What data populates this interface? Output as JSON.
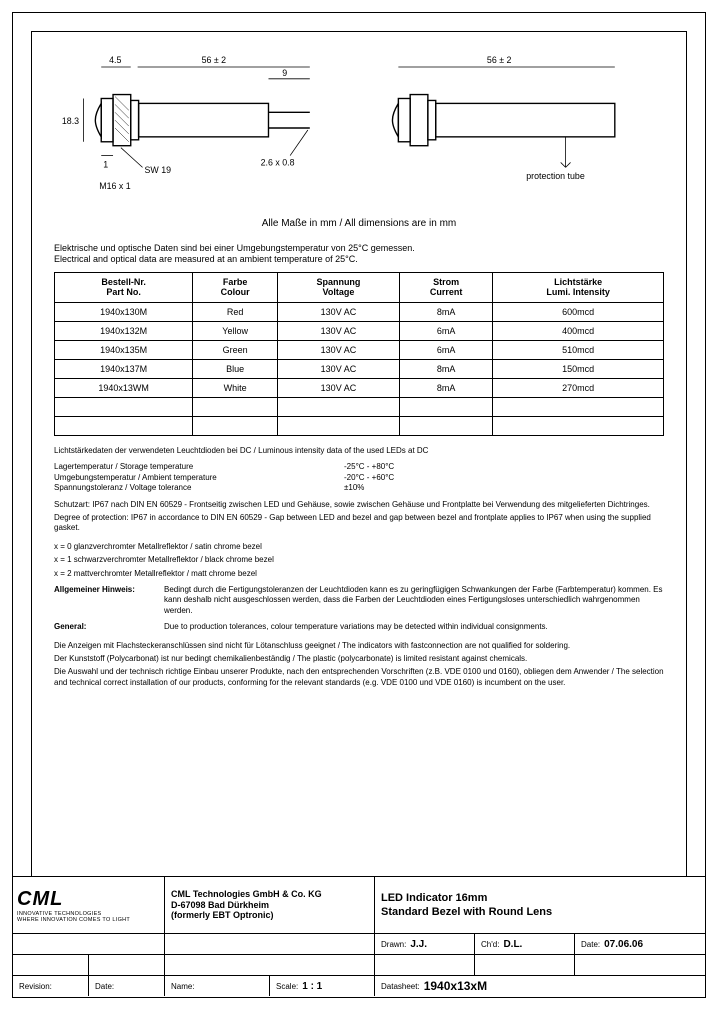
{
  "drawing": {
    "dims": {
      "d1": "4.5",
      "d2": "56 ± 2",
      "d3": "9",
      "d4": "56 ± 2",
      "h": "18.3",
      "t": "1",
      "sw": "SW 19",
      "thread": "M16 x 1",
      "pin": "2.6 x 0.8",
      "prot": "protection tube"
    },
    "caption": "Alle Maße in mm / All dimensions are in mm"
  },
  "intro": {
    "de": "Elektrische und optische Daten sind bei einer Umgebungstemperatur von 25°C gemessen.",
    "en": "Electrical and optical data are measured at an ambient temperature of 25°C."
  },
  "table": {
    "headers": {
      "part": "Bestell-Nr.\nPart No.",
      "colour": "Farbe\nColour",
      "voltage": "Spannung\nVoltage",
      "current": "Strom\nCurrent",
      "intensity": "Lichtstärke\nLumi. Intensity"
    },
    "rows": [
      {
        "part": "1940x130M",
        "colour": "Red",
        "voltage": "130V AC",
        "current": "8mA",
        "intensity": "600mcd"
      },
      {
        "part": "1940x132M",
        "colour": "Yellow",
        "voltage": "130V AC",
        "current": "6mA",
        "intensity": "400mcd"
      },
      {
        "part": "1940x135M",
        "colour": "Green",
        "voltage": "130V AC",
        "current": "6mA",
        "intensity": "510mcd"
      },
      {
        "part": "1940x137M",
        "colour": "Blue",
        "voltage": "130V AC",
        "current": "8mA",
        "intensity": "150mcd"
      },
      {
        "part": "1940x13WM",
        "colour": "White",
        "voltage": "130V AC",
        "current": "8mA",
        "intensity": "270mcd"
      },
      {
        "part": "",
        "colour": "",
        "voltage": "",
        "current": "",
        "intensity": ""
      },
      {
        "part": "",
        "colour": "",
        "voltage": "",
        "current": "",
        "intensity": ""
      }
    ]
  },
  "notes": {
    "dc": "Lichtstärkedaten der verwendeten Leuchtdioden bei DC / Luminous intensity data of the used LEDs at DC",
    "env": [
      {
        "l": "Lagertemperatur / Storage temperature",
        "v": "-25°C - +80°C"
      },
      {
        "l": "Umgebungstemperatur / Ambient temperature",
        "v": "-20°C - +60°C"
      },
      {
        "l": "Spannungstoleranz / Voltage tolerance",
        "v": "±10%"
      }
    ],
    "ip_de": "Schutzart: IP67 nach DIN EN 60529 - Frontseitig zwischen LED und Gehäuse, sowie zwischen Gehäuse und Frontplatte bei Verwendung des mitgelieferten Dichtringes.",
    "ip_en": "Degree of protection: IP67 in accordance to DIN EN 60529 - Gap between LED and bezel and gap between bezel and frontplate applies to IP67 when using the supplied gasket.",
    "x0": "x = 0   glanzverchromter Metallreflektor / satin chrome bezel",
    "x1": "x = 1   schwarzverchromter Metallreflektor / black chrome bezel",
    "x2": "x = 2   mattverchromter Metallreflektor / matt chrome bezel",
    "hinweis_lbl": "Allgemeiner Hinweis:",
    "hinweis_txt": "Bedingt durch die Fertigungstoleranzen der Leuchtdioden kann es zu geringfügigen Schwankungen der Farbe (Farbtemperatur) kommen. Es kann deshalb nicht ausgeschlossen werden, dass die Farben der Leuchtdioden eines Fertigungsloses unterschiedlich wahrgenommen werden.",
    "general_lbl": "General:",
    "general_txt": "Due to production tolerances, colour temperature variations may be detected within individual consignments.",
    "solder": "Die Anzeigen mit Flachsteckeranschlüssen sind nicht für Lötanschluss geeignet / The indicators with fastconnection are not qualified for soldering.",
    "plastic": "Der Kunststoff (Polycarbonat) ist nur bedingt chemikalienbeständig / The plastic (polycarbonate) is limited resistant against chemicals.",
    "install": "Die Auswahl und der technisch richtige Einbau unserer Produkte, nach den entsprechenden Vorschriften (z.B. VDE 0100 und 0160), obliegen dem Anwender / The selection and technical correct installation of our products, conforming for the relevant standards (e.g. VDE 0100 und VDE 0160) is incumbent on the user."
  },
  "titleblock": {
    "logo": "CML",
    "logo_sub1": "INNOVATIVE TECHNOLOGIES",
    "logo_sub2": "WHERE INNOVATION COMES TO LIGHT",
    "company1": "CML Technologies GmbH & Co. KG",
    "company2": "D-67098 Bad Dürkheim",
    "company3": "(formerly EBT Optronic)",
    "title1": "LED Indicator 16mm",
    "title2": "Standard Bezel  with Round Lens",
    "drawn_lbl": "Drawn:",
    "drawn": "J.J.",
    "chkd_lbl": "Ch'd:",
    "chkd": "D.L.",
    "date_lbl": "Date:",
    "date": "07.06.06",
    "rev_lbl": "Revision:",
    "date2_lbl": "Date:",
    "name_lbl": "Name:",
    "scale_lbl": "Scale:",
    "scale": "1 : 1",
    "ds_lbl": "Datasheet:",
    "ds": "1940x13xM"
  }
}
